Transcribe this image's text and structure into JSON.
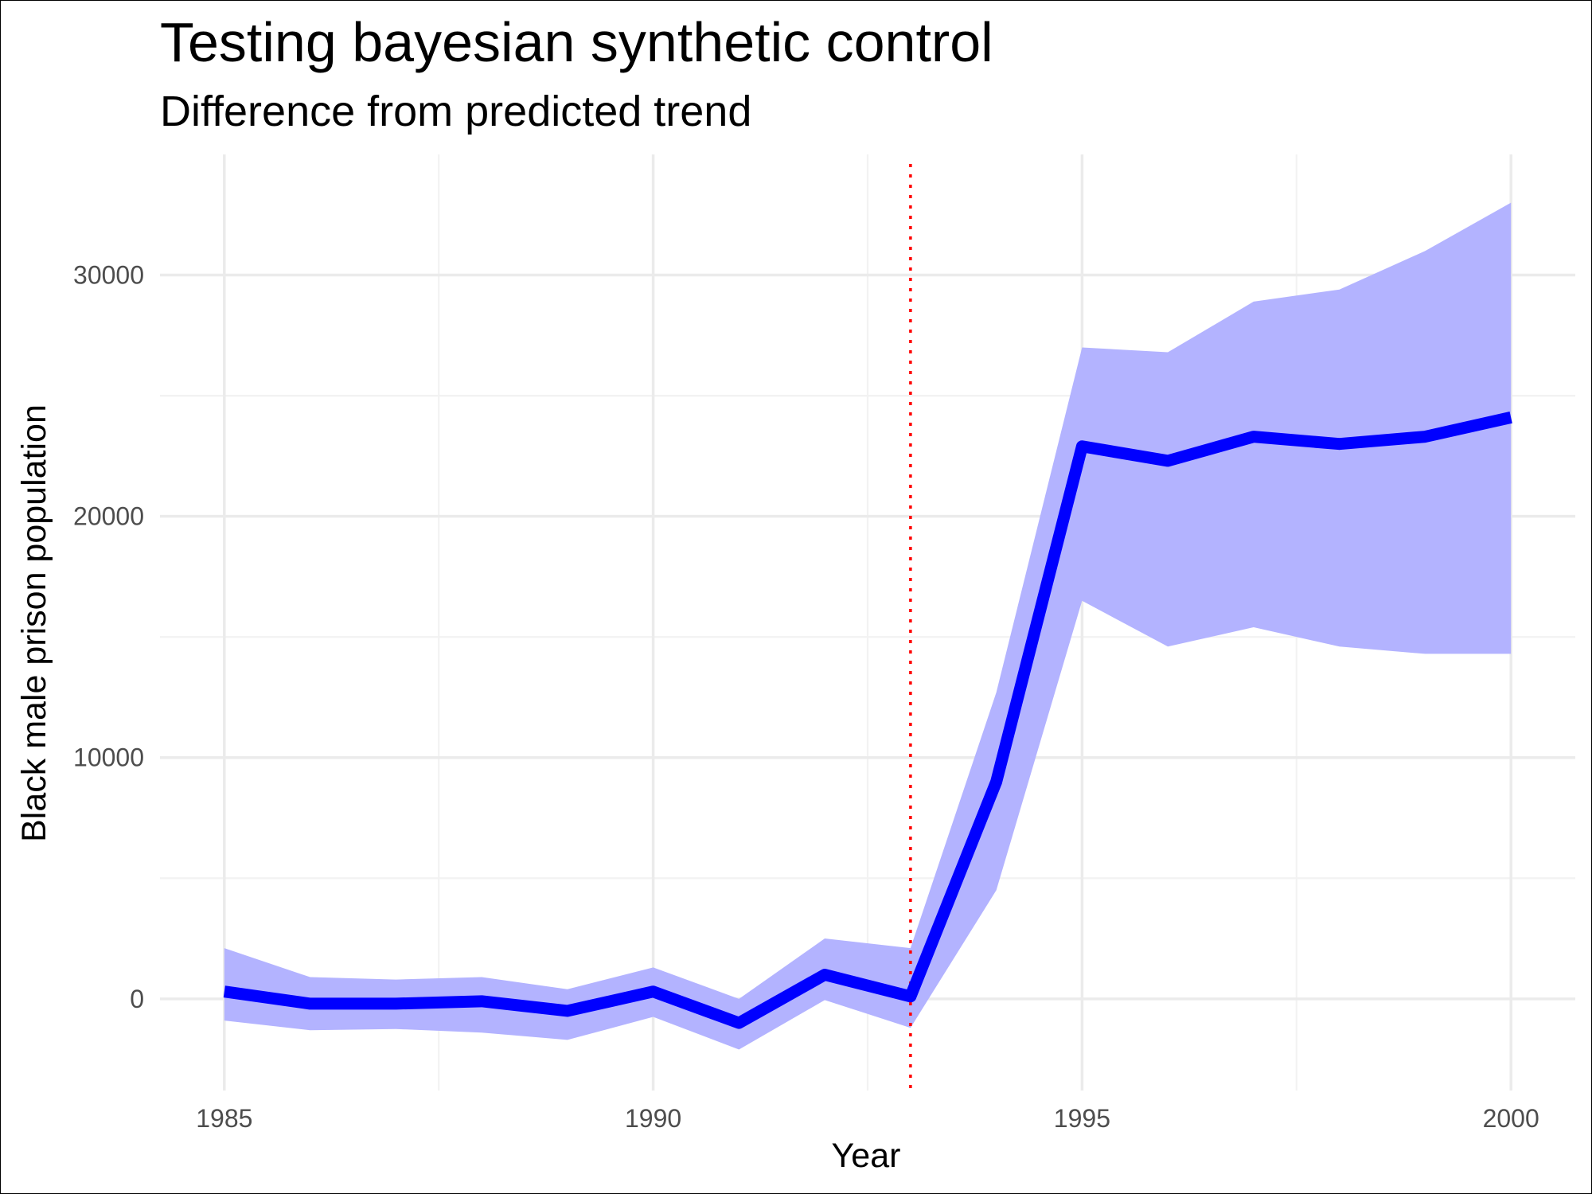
{
  "chart_data": {
    "type": "line",
    "title": "Testing bayesian synthetic control",
    "subtitle": "Difference from predicted trend",
    "xlabel": "Year",
    "ylabel": "Black male prison population",
    "x": [
      1985,
      1986,
      1987,
      1988,
      1989,
      1990,
      1991,
      1992,
      1993,
      1994,
      1995,
      1996,
      1997,
      1998,
      1999,
      2000
    ],
    "series": [
      {
        "values": [
          300,
          -200,
          -200,
          -100,
          -500,
          300,
          -1000,
          1000,
          100,
          9000,
          22900,
          22300,
          23300,
          23000,
          23300,
          24100
        ],
        "color": "#0000ff"
      }
    ],
    "band": {
      "lower": [
        -900,
        -1300,
        -1250,
        -1400,
        -1700,
        -750,
        -2100,
        -50,
        -1200,
        4500,
        16500,
        14600,
        15400,
        14600,
        14300,
        14300
      ],
      "upper": [
        2100,
        900,
        800,
        900,
        400,
        1300,
        0,
        2500,
        2100,
        12700,
        27000,
        26800,
        28900,
        29400,
        31000,
        33000
      ],
      "color": "#b3b3ff"
    },
    "vline": {
      "x": 1993,
      "color": "#ff0000",
      "style": "dotted"
    },
    "xticks": [
      1985,
      1990,
      1995,
      2000
    ],
    "yticks": [
      0,
      10000,
      20000,
      30000
    ],
    "xlim": [
      1984.25,
      2000.75
    ],
    "ylim": [
      -3800,
      35000
    ],
    "grid": true
  }
}
